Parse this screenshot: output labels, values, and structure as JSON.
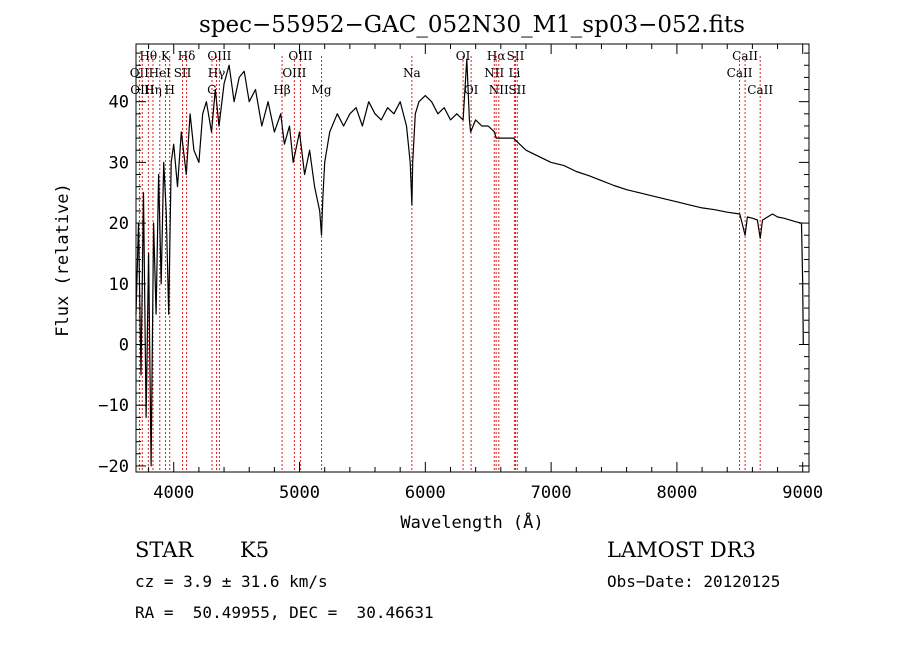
{
  "chart_data": {
    "type": "line",
    "title": "spec−55952−GAC_052N30_M1_sp03−052.fits",
    "xlabel": "Wavelength (Å)",
    "ylabel": "Flux (relative)",
    "xlim": [
      3700,
      9050
    ],
    "ylim": [
      -21,
      49.5
    ],
    "xticks": [
      4000,
      5000,
      6000,
      7000,
      8000,
      9000
    ],
    "yticks": [
      -20,
      -10,
      0,
      10,
      20,
      30,
      40
    ],
    "grid": false,
    "series": [
      {
        "x": [
          3700,
          3720,
          3740,
          3760,
          3780,
          3800,
          3820,
          3840,
          3860,
          3880,
          3900,
          3920,
          3940,
          3960,
          3980,
          4000,
          4030,
          4060,
          4100,
          4130,
          4160,
          4200,
          4230,
          4260,
          4300,
          4330,
          4360,
          4400,
          4440,
          4480,
          4520,
          4560,
          4600,
          4650,
          4700,
          4750,
          4800,
          4850,
          4880,
          4920,
          4950,
          5000,
          5040,
          5080,
          5120,
          5160,
          5175,
          5185,
          5200,
          5240,
          5300,
          5350,
          5400,
          5450,
          5500,
          5550,
          5600,
          5650,
          5700,
          5750,
          5800,
          5850,
          5880,
          5893,
          5900,
          5920,
          5950,
          6000,
          6050,
          6100,
          6150,
          6200,
          6250,
          6300,
          6330,
          6350,
          6360,
          6380,
          6400,
          6450,
          6500,
          6550,
          6563,
          6600,
          6650,
          6700,
          6750,
          6800,
          6900,
          7000,
          7100,
          7200,
          7300,
          7400,
          7500,
          7600,
          7700,
          7800,
          7900,
          8000,
          8100,
          8200,
          8300,
          8400,
          8500,
          8542,
          8560,
          8600,
          8640,
          8662,
          8680,
          8720,
          8760,
          8800,
          8850,
          8900,
          8950,
          8990,
          9000,
          9005
        ],
        "values": [
          5,
          20,
          -5,
          25,
          -12,
          15,
          -20,
          20,
          5,
          28,
          10,
          30,
          22,
          5,
          30,
          33,
          26,
          35,
          28,
          38,
          32,
          30,
          38,
          40,
          35,
          42,
          36,
          43,
          46,
          40,
          44,
          45,
          40,
          42,
          36,
          40,
          35,
          38,
          33,
          36,
          30,
          35,
          28,
          32,
          26,
          22,
          18,
          24,
          30,
          35,
          38,
          36,
          38,
          39,
          36,
          40,
          38,
          37,
          39,
          38,
          40,
          36,
          30,
          23,
          30,
          38,
          40,
          41,
          40,
          38,
          39,
          37,
          38,
          37,
          47,
          37,
          35,
          36,
          37,
          36,
          36,
          35,
          34,
          34,
          34,
          34,
          33,
          32,
          31,
          30,
          29.5,
          28.5,
          27.8,
          27,
          26.2,
          25.5,
          25,
          24.5,
          24,
          23.5,
          23,
          22.5,
          22.2,
          21.8,
          21.5,
          18,
          21,
          20.8,
          20.5,
          17.5,
          20.5,
          21,
          21.5,
          21,
          20.8,
          20.5,
          20.2,
          20,
          10,
          0
        ]
      }
    ],
    "line_markers": [
      {
        "label": "Hθ",
        "wavelength": 3798,
        "row": 0,
        "color": "#e02020"
      },
      {
        "label": "OII",
        "wavelength": 3727,
        "row": 1,
        "color": "#e02020"
      },
      {
        "label": "OIII",
        "wavelength": 3750,
        "row": 2,
        "color": "#e02020"
      },
      {
        "label": "Hη",
        "wavelength": 3835,
        "row": 2,
        "color": "#e02020"
      },
      {
        "label": "K",
        "wavelength": 3934,
        "row": 0,
        "color": "#e02020"
      },
      {
        "label": "HeI",
        "wavelength": 3889,
        "row": 1,
        "color": "#e02020"
      },
      {
        "label": "H",
        "wavelength": 3968,
        "row": 2,
        "color": "#e02020"
      },
      {
        "label": "SII",
        "wavelength": 4070,
        "row": 1,
        "color": "#e02020"
      },
      {
        "label": "Hδ",
        "wavelength": 4102,
        "row": 0,
        "color": "#e02020"
      },
      {
        "label": "OIII",
        "wavelength": 4363,
        "row": 0,
        "color": "#e02020"
      },
      {
        "label": "Hγ",
        "wavelength": 4340,
        "row": 1,
        "color": "#e02020"
      },
      {
        "label": "G",
        "wavelength": 4304,
        "row": 2,
        "color": "#e02020"
      },
      {
        "label": "OIII",
        "wavelength": 5007,
        "row": 0,
        "color": "#e02020"
      },
      {
        "label": "OIII",
        "wavelength": 4959,
        "row": 1,
        "color": "#e02020"
      },
      {
        "label": "Hβ",
        "wavelength": 4861,
        "row": 2,
        "color": "#e02020"
      },
      {
        "label": "Mg",
        "wavelength": 5175,
        "row": 2,
        "color": "#e02020"
      },
      {
        "label": "Na",
        "wavelength": 5893,
        "row": 1,
        "color": "#e02020"
      },
      {
        "label": "OI",
        "wavelength": 6300,
        "row": 0,
        "color": "#e02020"
      },
      {
        "label": "OI",
        "wavelength": 6364,
        "row": 2,
        "color": "#e02020"
      },
      {
        "label": "Hα",
        "wavelength": 6563,
        "row": 0,
        "color": "#e02020"
      },
      {
        "label": "NII",
        "wavelength": 6548,
        "row": 1,
        "color": "#e02020"
      },
      {
        "label": "NII",
        "wavelength": 6584,
        "row": 2,
        "color": "#e02020"
      },
      {
        "label": "SII",
        "wavelength": 6717,
        "row": 0,
        "color": "#e02020"
      },
      {
        "label": "Li",
        "wavelength": 6708,
        "row": 1,
        "color": "#e02020"
      },
      {
        "label": "SII",
        "wavelength": 6731,
        "row": 2,
        "color": "#e02020"
      },
      {
        "label": "CaII",
        "wavelength": 8542,
        "row": 0,
        "color": "#e02020"
      },
      {
        "label": "CaII",
        "wavelength": 8498,
        "row": 1,
        "color": "#e02020"
      },
      {
        "label": "CaII",
        "wavelength": 8662,
        "row": 2,
        "color": "#e02020"
      }
    ]
  },
  "info": {
    "class": "STAR",
    "subclass": "K5",
    "survey": "LAMOST DR3",
    "cz": "cz = 3.9 ± 31.6 km/s",
    "obs_date": "Obs−Date: 20120125",
    "coords": "RA =  50.49955, DEC =  30.46631"
  }
}
